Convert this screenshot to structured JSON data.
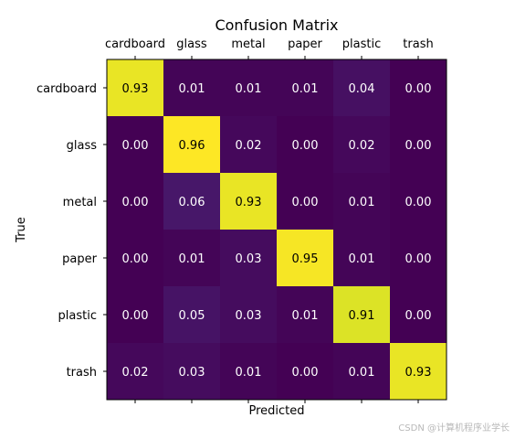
{
  "chart_data": {
    "type": "heatmap",
    "title": "Confusion Matrix",
    "xlabel": "Predicted",
    "ylabel": "True",
    "x_categories": [
      "cardboard",
      "glass",
      "metal",
      "paper",
      "plastic",
      "trash"
    ],
    "y_categories": [
      "cardboard",
      "glass",
      "metal",
      "paper",
      "plastic",
      "trash"
    ],
    "values": [
      [
        0.93,
        0.01,
        0.01,
        0.01,
        0.04,
        0.0
      ],
      [
        0.0,
        0.96,
        0.02,
        0.0,
        0.02,
        0.0
      ],
      [
        0.0,
        0.06,
        0.93,
        0.0,
        0.01,
        0.0
      ],
      [
        0.0,
        0.01,
        0.03,
        0.95,
        0.01,
        0.0
      ],
      [
        0.0,
        0.05,
        0.03,
        0.01,
        0.91,
        0.0
      ],
      [
        0.02,
        0.03,
        0.01,
        0.0,
        0.01,
        0.93
      ]
    ],
    "value_format": "2dp",
    "colormap": "viridis",
    "x_tick_position": "top",
    "grid": false,
    "legend": "none"
  },
  "watermark": "CSDN @计算机程序业学长"
}
